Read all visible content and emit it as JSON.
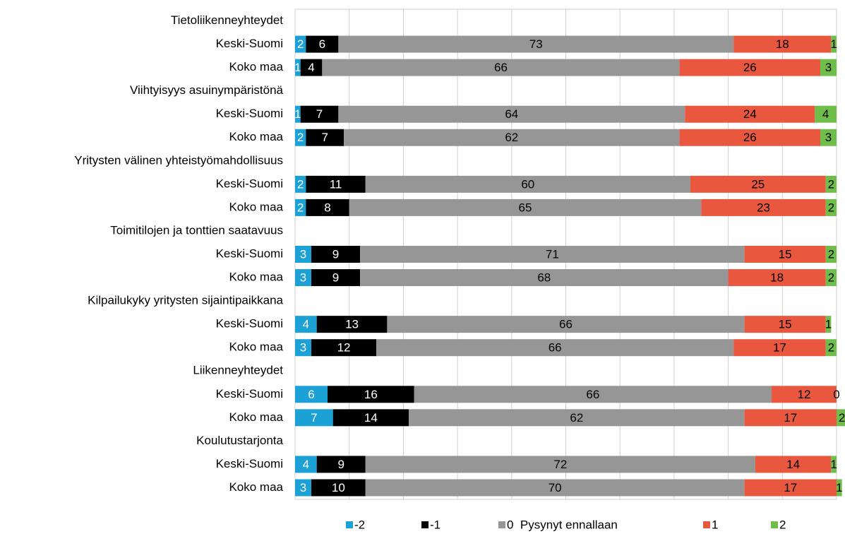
{
  "chart_data": {
    "type": "stacked-barh",
    "categories": [
      "Tietoliikenneyhteydet",
      "Keski-Suomi",
      "Koko maa",
      "Viihtyisyys asuinympäristönä",
      "Keski-Suomi",
      "Koko maa",
      "Yritysten välinen yhteistyömahdollisuus",
      "Keski-Suomi",
      "Koko maa",
      "Toimitilojen ja tonttien saatavuus",
      "Keski-Suomi",
      "Koko maa",
      "Kilpailukyky yritysten sijaintipaikkana",
      "Keski-Suomi",
      "Koko maa",
      "Liikenneyhteydet",
      "Keski-Suomi",
      "Koko maa",
      "Koulutustarjonta",
      "Keski-Suomi",
      "Koko maa"
    ],
    "series": [
      {
        "name": "-2",
        "color": "#1ba1d6",
        "label_color": "#ffffff",
        "values": [
          null,
          2,
          1,
          null,
          1,
          2,
          null,
          2,
          2,
          null,
          3,
          3,
          null,
          4,
          3,
          null,
          6,
          7,
          null,
          4,
          3
        ]
      },
      {
        "name": "-1",
        "color": "#000000",
        "label_color": "#ffffff",
        "values": [
          null,
          6,
          4,
          null,
          7,
          7,
          null,
          11,
          8,
          null,
          9,
          9,
          null,
          13,
          12,
          null,
          16,
          14,
          null,
          9,
          10
        ]
      },
      {
        "name": "0  Pysynyt ennallaan",
        "color": "#969696",
        "label_color": "#000000",
        "values": [
          null,
          73,
          66,
          null,
          64,
          62,
          null,
          60,
          65,
          null,
          71,
          68,
          null,
          66,
          66,
          null,
          66,
          62,
          null,
          72,
          70
        ]
      },
      {
        "name": "1",
        "color": "#e9573f",
        "label_color": "#000000",
        "values": [
          null,
          18,
          26,
          null,
          24,
          26,
          null,
          25,
          23,
          null,
          15,
          18,
          null,
          15,
          17,
          null,
          12,
          17,
          null,
          14,
          17
        ]
      },
      {
        "name": "2",
        "color": "#6fbe4a",
        "label_color": "#000000",
        "values": [
          null,
          1,
          3,
          null,
          4,
          3,
          null,
          2,
          2,
          null,
          2,
          2,
          null,
          1,
          2,
          null,
          0,
          2,
          null,
          1,
          1
        ]
      }
    ],
    "xlim": [
      0,
      100
    ],
    "xticks": [
      0,
      10,
      20,
      30,
      40,
      50,
      60,
      70,
      80,
      90,
      100
    ],
    "grid": true
  }
}
